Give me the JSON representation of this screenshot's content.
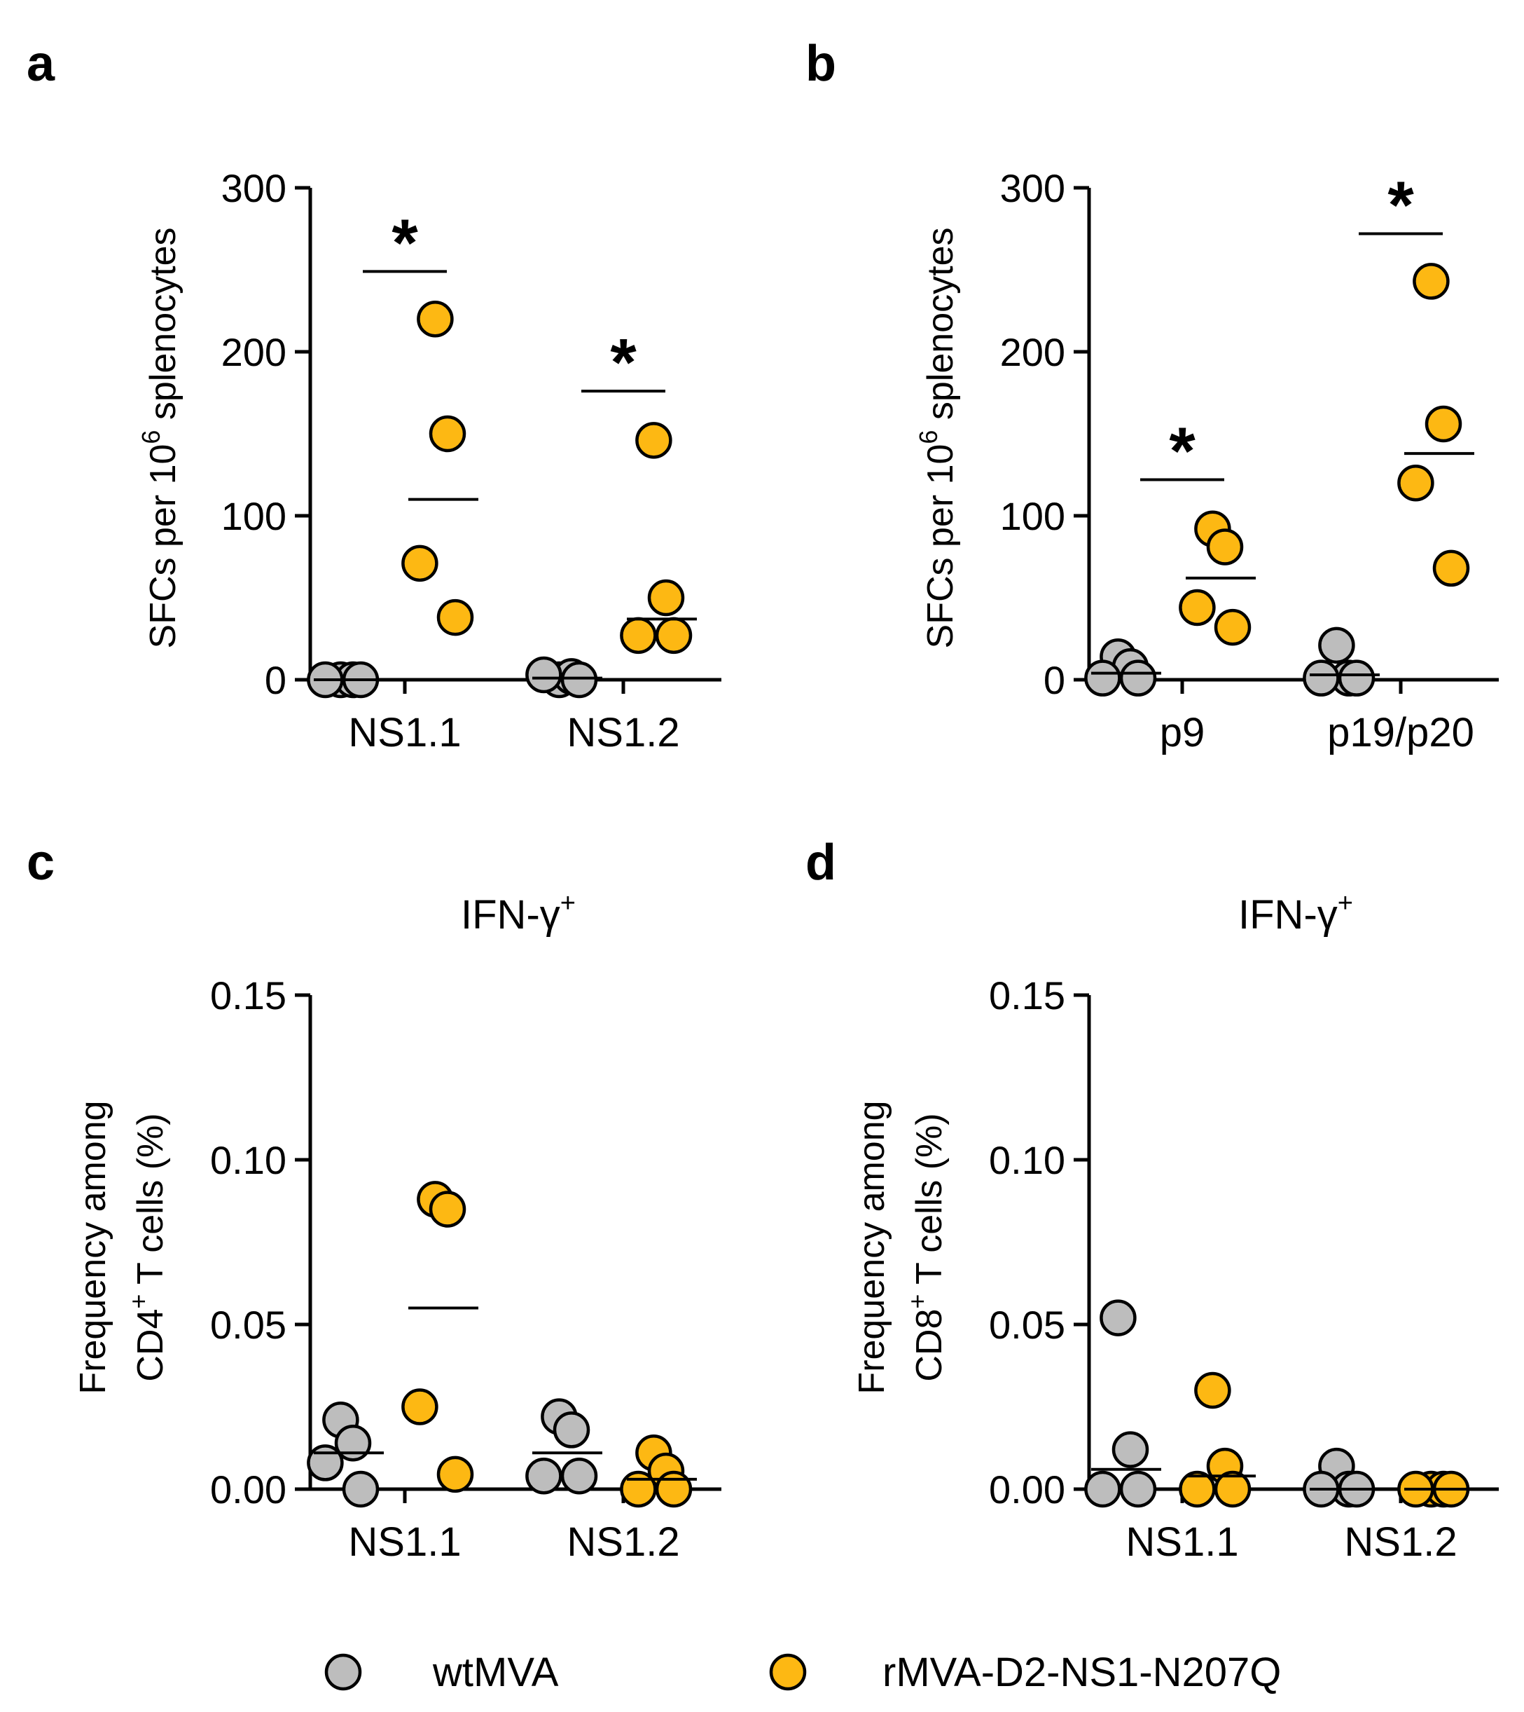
{
  "figure": {
    "legend": [
      {
        "label": "wtMVA",
        "color": "#BDBDBD"
      },
      {
        "label": "rMVA-D2-NS1-N207Q",
        "color": "#FDB813"
      }
    ]
  },
  "chart_data": [
    {
      "panel": "a",
      "type": "scatter",
      "title": "",
      "ylabel_main": "SFCs per 10",
      "ylabel_sup": "6",
      "ylabel_tail": " splenocytes",
      "ylim": [
        0,
        300
      ],
      "yticks": [
        0,
        100,
        200,
        300
      ],
      "ytick_labels": [
        "0",
        "100",
        "200",
        "300"
      ],
      "categories": [
        "NS1.1",
        "NS1.2"
      ],
      "series": [
        {
          "name": "wtMVA",
          "values": [
            [
              0,
              0,
              0,
              0
            ],
            [
              0,
              2,
              3,
              0
            ]
          ],
          "means": [
            0,
            1
          ]
        },
        {
          "name": "rMVA-D2-NS1-N207Q",
          "values": [
            [
              220,
              150,
              71,
              38
            ],
            [
              146,
              50,
              27,
              27
            ]
          ],
          "means": [
            110,
            37
          ]
        }
      ],
      "significance": [
        {
          "category": 0,
          "label": "*",
          "y": 249
        },
        {
          "category": 1,
          "label": "*",
          "y": 176
        }
      ]
    },
    {
      "panel": "b",
      "type": "scatter",
      "title": "",
      "ylabel_main": "SFCs per 10",
      "ylabel_sup": "6",
      "ylabel_tail": " splenocytes",
      "ylim": [
        0,
        300
      ],
      "yticks": [
        0,
        100,
        200,
        300
      ],
      "ytick_labels": [
        "0",
        "100",
        "200",
        "300"
      ],
      "categories": [
        "p9",
        "p19/p20"
      ],
      "series": [
        {
          "name": "wtMVA",
          "values": [
            [
              14,
              8,
              1,
              1
            ],
            [
              21,
              1,
              1,
              1
            ]
          ],
          "means": [
            4,
            3
          ]
        },
        {
          "name": "rMVA-D2-NS1-N207Q",
          "values": [
            [
              92,
              81,
              44,
              32
            ],
            [
              243,
              156,
              120,
              68
            ]
          ],
          "means": [
            62,
            138
          ]
        }
      ],
      "significance": [
        {
          "category": 0,
          "label": "*",
          "y": 122
        },
        {
          "category": 1,
          "label": "*",
          "y": 272
        }
      ]
    },
    {
      "panel": "c",
      "type": "scatter",
      "title_main": "IFN-γ",
      "title_sup": "+",
      "ylabel_line1": "Frequency among",
      "ylabel_line2_main": "CD4",
      "ylabel_line2_sup": "+",
      "ylabel_line2_tail": "  T cells (%)",
      "ylim": [
        0,
        0.15
      ],
      "yticks": [
        0,
        0.05,
        0.1,
        0.15
      ],
      "ytick_labels": [
        "0.00",
        "0.05",
        "0.10",
        "0.15"
      ],
      "categories": [
        "NS1.1",
        "NS1.2"
      ],
      "series": [
        {
          "name": "wtMVA",
          "values": [
            [
              0.021,
              0.014,
              0.008,
              0.0
            ],
            [
              0.022,
              0.018,
              0.004,
              0.004
            ]
          ],
          "means": [
            0.011,
            0.011
          ]
        },
        {
          "name": "rMVA-D2-NS1-N207Q",
          "values": [
            [
              0.088,
              0.085,
              0.025,
              0.0045
            ],
            [
              0.011,
              0.0055,
              0.0,
              0.0
            ]
          ],
          "means": [
            0.055,
            0.003
          ]
        }
      ],
      "significance": []
    },
    {
      "panel": "d",
      "type": "scatter",
      "title_main": "IFN-γ",
      "title_sup": "+",
      "ylabel_line1": "Frequency among",
      "ylabel_line2_main": "CD8",
      "ylabel_line2_sup": "+",
      "ylabel_line2_tail": "  T cells (%)",
      "ylim": [
        0,
        0.15
      ],
      "yticks": [
        0,
        0.05,
        0.1,
        0.15
      ],
      "ytick_labels": [
        "0.00",
        "0.05",
        "0.10",
        "0.15"
      ],
      "categories": [
        "NS1.1",
        "NS1.2"
      ],
      "series": [
        {
          "name": "wtMVA",
          "values": [
            [
              0.052,
              0.012,
              0.0,
              0.0
            ],
            [
              0.007,
              0.0,
              0.0,
              0.0
            ]
          ],
          "means": [
            0.006,
            0.0
          ]
        },
        {
          "name": "rMVA-D2-NS1-N207Q",
          "values": [
            [
              0.03,
              0.007,
              0.0,
              0.0
            ],
            [
              0.0,
              0.0,
              0.0,
              0.0
            ]
          ],
          "means": [
            0.004,
            0.0
          ]
        }
      ],
      "significance": []
    }
  ]
}
